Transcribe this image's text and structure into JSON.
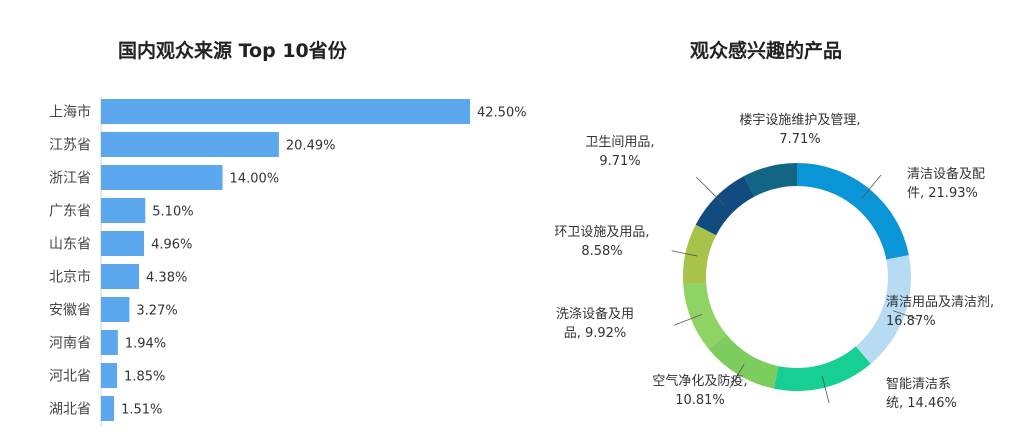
{
  "chart_data": [
    {
      "type": "bar",
      "orientation": "horizontal",
      "title": "国内观众来源 Top 10省份",
      "categories": [
        "上海市",
        "江苏省",
        "浙江省",
        "广东省",
        "山东省",
        "北京市",
        "安徽省",
        "河南省",
        "河北省",
        "湖北省"
      ],
      "values": [
        42.5,
        20.49,
        14.0,
        5.1,
        4.96,
        4.38,
        3.27,
        1.94,
        1.85,
        1.51
      ],
      "value_labels": [
        "42.50%",
        "20.49%",
        "14.00%",
        "5.10%",
        "4.96%",
        "4.38%",
        "3.27%",
        "1.94%",
        "1.85%",
        "1.51%"
      ],
      "color": "#5ba8ee",
      "xlim": [
        0,
        45
      ],
      "grid": false
    },
    {
      "type": "pie",
      "style": "donut",
      "title": "观众感兴趣的产品",
      "slices": [
        {
          "label_lines": [
            "清洁设备及配",
            "件, 21.93%"
          ],
          "value": 21.93,
          "color": "#0a96d6"
        },
        {
          "label_lines": [
            "清洁用品及清洁剂,",
            "16.87%"
          ],
          "value": 16.87,
          "color": "#b6dbf2"
        },
        {
          "label_lines": [
            "智能清洁系",
            "统, 14.46%"
          ],
          "value": 14.46,
          "color": "#17cf92"
        },
        {
          "label_lines": [
            "空气净化及防疫,",
            "10.81%"
          ],
          "value": 10.81,
          "color": "#7dcd5e"
        },
        {
          "label_lines": [
            "洗涤设备及用",
            "品, 9.92%"
          ],
          "value": 9.92,
          "color": "#8fd364"
        },
        {
          "label_lines": [
            "环卫设施及用品,",
            "8.58%"
          ],
          "value": 8.58,
          "color": "#a9c24a"
        },
        {
          "label_lines": [
            "卫生间用品,",
            "9.71%"
          ],
          "value": 9.71,
          "color": "#124b80"
        },
        {
          "label_lines": [
            "楼宇设施维护及管理,",
            "7.71%"
          ],
          "value": 7.71,
          "color": "#126585"
        }
      ]
    }
  ]
}
